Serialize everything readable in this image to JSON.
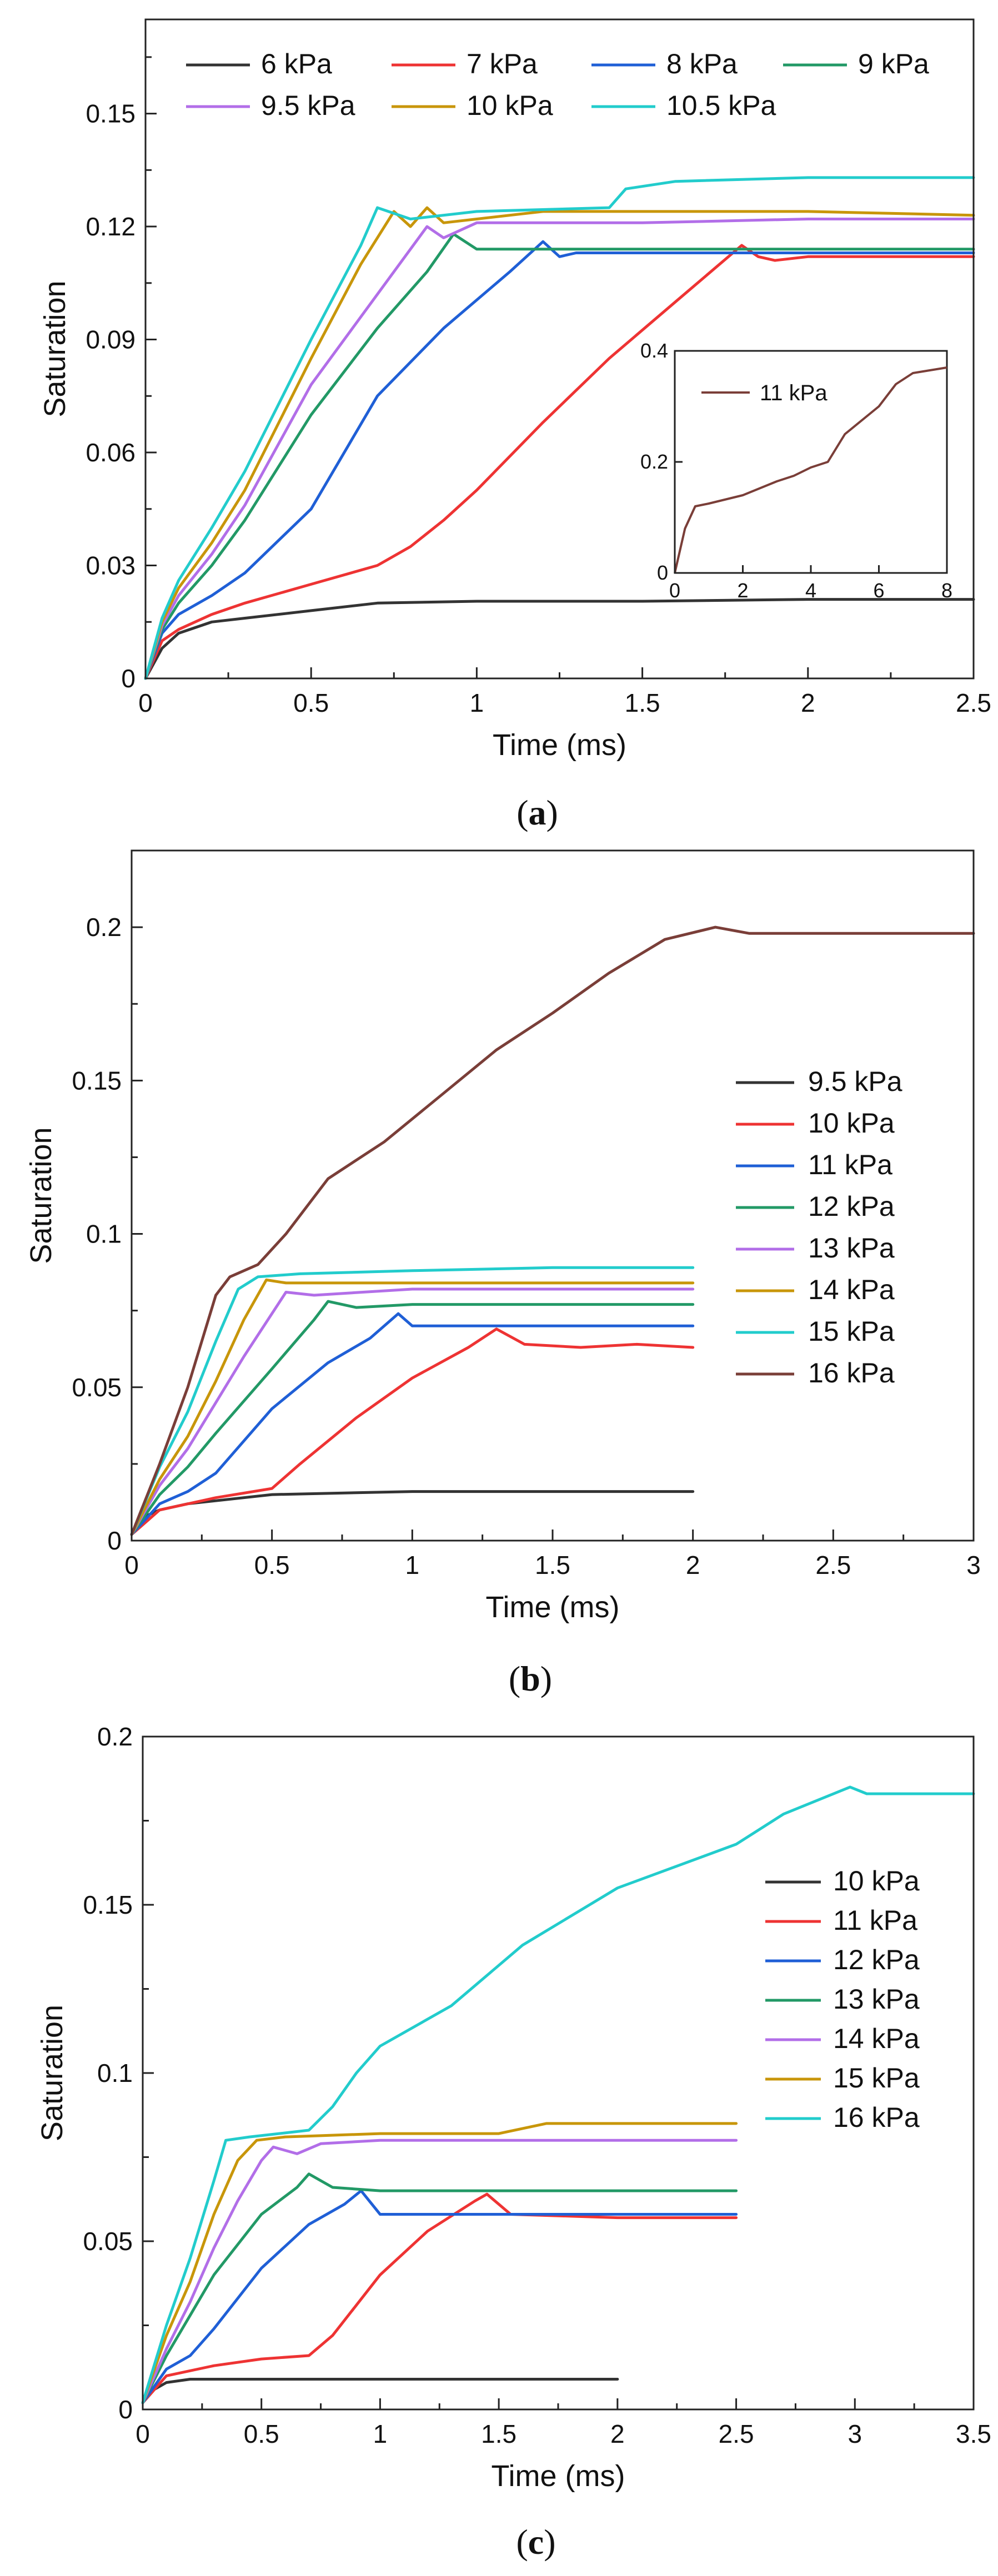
{
  "figure_type": "multi-panel line chart",
  "colors": {
    "black": "#333333",
    "red": "#ee3333",
    "blue": "#1f5fd6",
    "green": "#229966",
    "purple": "#b26ee8",
    "gold": "#c8960a",
    "cyan": "#22cccc",
    "brown": "#7a3e38"
  },
  "chart_data": [
    {
      "type": "line",
      "panel_label": "a",
      "xlabel": "Time (ms)",
      "ylabel": "Saturation",
      "xlim": [
        0,
        2.5
      ],
      "ylim": [
        0,
        0.175
      ],
      "xticks": [
        "0",
        "0.5",
        "1",
        "1.5",
        "2",
        "2.5"
      ],
      "yticks": [
        "0",
        "0.03",
        "0.06",
        "0.09",
        "0.12",
        "0.15"
      ],
      "xtick_values": [
        0,
        0.5,
        1,
        1.5,
        2,
        2.5
      ],
      "ytick_values": [
        0,
        0.03,
        0.06,
        0.09,
        0.12,
        0.15
      ],
      "legend_position": "top",
      "series": [
        {
          "name": "6 kPa",
          "color": "black",
          "x": [
            0,
            0.05,
            0.1,
            0.2,
            0.3,
            0.5,
            0.7,
            1.0,
            1.5,
            2.0,
            2.5
          ],
          "y": [
            0,
            0.008,
            0.012,
            0.015,
            0.016,
            0.018,
            0.02,
            0.0205,
            0.0205,
            0.021,
            0.021
          ]
        },
        {
          "name": "7 kPa",
          "color": "red",
          "x": [
            0,
            0.05,
            0.1,
            0.2,
            0.3,
            0.5,
            0.7,
            0.8,
            0.9,
            1.0,
            1.2,
            1.4,
            1.6,
            1.8,
            1.85,
            1.9,
            2.0,
            2.5
          ],
          "y": [
            0,
            0.01,
            0.013,
            0.017,
            0.02,
            0.025,
            0.03,
            0.035,
            0.042,
            0.05,
            0.068,
            0.085,
            0.1,
            0.115,
            0.112,
            0.111,
            0.112,
            0.112
          ]
        },
        {
          "name": "8 kPa",
          "color": "blue",
          "x": [
            0,
            0.05,
            0.1,
            0.2,
            0.3,
            0.5,
            0.7,
            0.9,
            1.1,
            1.2,
            1.25,
            1.3,
            1.5,
            2.0,
            2.5
          ],
          "y": [
            0,
            0.012,
            0.017,
            0.022,
            0.028,
            0.045,
            0.075,
            0.093,
            0.108,
            0.116,
            0.112,
            0.113,
            0.113,
            0.113,
            0.113
          ]
        },
        {
          "name": "9 kPa",
          "color": "green",
          "x": [
            0,
            0.05,
            0.1,
            0.2,
            0.3,
            0.5,
            0.7,
            0.85,
            0.93,
            1.0,
            1.5,
            2.0,
            2.5
          ],
          "y": [
            0,
            0.013,
            0.02,
            0.03,
            0.042,
            0.07,
            0.093,
            0.108,
            0.118,
            0.114,
            0.114,
            0.114,
            0.114
          ]
        },
        {
          "name": "9.5 kPa",
          "color": "purple",
          "x": [
            0,
            0.05,
            0.1,
            0.2,
            0.3,
            0.5,
            0.7,
            0.85,
            0.9,
            1.0,
            1.5,
            2.0,
            2.5
          ],
          "y": [
            0,
            0.014,
            0.022,
            0.033,
            0.046,
            0.078,
            0.102,
            0.12,
            0.117,
            0.121,
            0.121,
            0.122,
            0.122
          ]
        },
        {
          "name": "10 kPa",
          "color": "gold",
          "x": [
            0,
            0.05,
            0.1,
            0.2,
            0.3,
            0.5,
            0.65,
            0.75,
            0.8,
            0.85,
            0.9,
            1.2,
            1.5,
            2.0,
            2.5
          ],
          "y": [
            0,
            0.015,
            0.024,
            0.036,
            0.05,
            0.085,
            0.11,
            0.124,
            0.12,
            0.125,
            0.121,
            0.124,
            0.124,
            0.124,
            0.123
          ]
        },
        {
          "name": "10.5 kPa",
          "color": "cyan",
          "x": [
            0,
            0.05,
            0.1,
            0.2,
            0.3,
            0.5,
            0.65,
            0.7,
            0.8,
            1.0,
            1.4,
            1.45,
            1.6,
            2.0,
            2.5
          ],
          "y": [
            0,
            0.016,
            0.026,
            0.04,
            0.055,
            0.09,
            0.115,
            0.125,
            0.122,
            0.124,
            0.125,
            0.13,
            0.132,
            0.133,
            0.133
          ]
        }
      ],
      "inset": {
        "xlim": [
          0,
          8
        ],
        "ylim": [
          0,
          0.4
        ],
        "xticks": [
          "0",
          "2",
          "4",
          "6",
          "8"
        ],
        "yticks": [
          "0",
          "0.2",
          "0.4"
        ],
        "xtick_values": [
          0,
          2,
          4,
          6,
          8
        ],
        "ytick_values": [
          0,
          0.2,
          0.4
        ],
        "series": [
          {
            "name": "11 kPa",
            "color": "brown",
            "x": [
              0,
              0.3,
              0.6,
              1.0,
              2.0,
              3.0,
              3.5,
              4.0,
              4.5,
              5.0,
              6.0,
              6.5,
              7.0,
              8.0
            ],
            "y": [
              0,
              0.08,
              0.12,
              0.125,
              0.14,
              0.165,
              0.175,
              0.19,
              0.2,
              0.25,
              0.3,
              0.34,
              0.36,
              0.37
            ]
          }
        ]
      }
    },
    {
      "type": "line",
      "panel_label": "b",
      "xlabel": "Time (ms)",
      "ylabel": "Saturation",
      "xlim": [
        0,
        3
      ],
      "ylim": [
        0,
        0.225
      ],
      "xticks": [
        "0",
        "0.5",
        "1",
        "1.5",
        "2",
        "2.5",
        "3"
      ],
      "yticks": [
        "0",
        "0.05",
        "0.1",
        "0.15",
        "0.2"
      ],
      "xtick_values": [
        0,
        0.5,
        1,
        1.5,
        2,
        2.5,
        3
      ],
      "ytick_values": [
        0,
        0.05,
        0.1,
        0.15,
        0.2
      ],
      "legend_position": "right",
      "series": [
        {
          "name": "9.5 kPa",
          "color": "black",
          "x": [
            0,
            0.05,
            0.1,
            0.2,
            0.3,
            0.5,
            1.0,
            1.5,
            2.0
          ],
          "y": [
            0.002,
            0.008,
            0.01,
            0.012,
            0.013,
            0.015,
            0.016,
            0.016,
            0.016
          ]
        },
        {
          "name": "10  kPa",
          "color": "red",
          "x": [
            0,
            0.1,
            0.3,
            0.5,
            0.6,
            0.8,
            1.0,
            1.2,
            1.3,
            1.4,
            1.6,
            1.8,
            2.0
          ],
          "y": [
            0.002,
            0.01,
            0.014,
            0.017,
            0.025,
            0.04,
            0.053,
            0.063,
            0.069,
            0.064,
            0.063,
            0.064,
            0.063
          ]
        },
        {
          "name": "11  kPa",
          "color": "blue",
          "x": [
            0,
            0.1,
            0.2,
            0.3,
            0.5,
            0.7,
            0.85,
            0.95,
            1.0,
            1.1,
            1.5,
            2.0
          ],
          "y": [
            0.002,
            0.012,
            0.016,
            0.022,
            0.043,
            0.058,
            0.066,
            0.074,
            0.07,
            0.07,
            0.07,
            0.07
          ]
        },
        {
          "name": "12  kPa",
          "color": "green",
          "x": [
            0,
            0.1,
            0.2,
            0.3,
            0.5,
            0.65,
            0.7,
            0.8,
            1.0,
            1.5,
            2.0
          ],
          "y": [
            0.002,
            0.015,
            0.024,
            0.035,
            0.056,
            0.072,
            0.078,
            0.076,
            0.077,
            0.077,
            0.077
          ]
        },
        {
          "name": "13  kPa",
          "color": "purple",
          "x": [
            0,
            0.1,
            0.2,
            0.3,
            0.4,
            0.55,
            0.65,
            1.0,
            1.5,
            2.0
          ],
          "y": [
            0.002,
            0.018,
            0.03,
            0.045,
            0.06,
            0.081,
            0.08,
            0.082,
            0.082,
            0.082
          ]
        },
        {
          "name": "14  kPa",
          "color": "gold",
          "x": [
            0,
            0.1,
            0.2,
            0.3,
            0.4,
            0.48,
            0.55,
            1.0,
            1.5,
            2.0
          ],
          "y": [
            0.002,
            0.02,
            0.034,
            0.052,
            0.072,
            0.085,
            0.084,
            0.084,
            0.084,
            0.084
          ]
        },
        {
          "name": "15  kPa",
          "color": "cyan",
          "x": [
            0,
            0.1,
            0.2,
            0.3,
            0.38,
            0.45,
            0.6,
            1.0,
            1.5,
            2.0
          ],
          "y": [
            0.002,
            0.024,
            0.042,
            0.065,
            0.082,
            0.086,
            0.087,
            0.088,
            0.089,
            0.089
          ]
        },
        {
          "name": "16  kPa",
          "color": "brown",
          "x": [
            0,
            0.1,
            0.2,
            0.3,
            0.35,
            0.45,
            0.55,
            0.7,
            0.9,
            1.1,
            1.3,
            1.5,
            1.7,
            1.9,
            2.08,
            2.2,
            2.5,
            3.0
          ],
          "y": [
            0.002,
            0.025,
            0.05,
            0.08,
            0.086,
            0.09,
            0.1,
            0.118,
            0.13,
            0.145,
            0.16,
            0.172,
            0.185,
            0.196,
            0.2,
            0.198,
            0.198,
            0.198
          ]
        }
      ]
    },
    {
      "type": "line",
      "panel_label": "c",
      "xlabel": "Time (ms)",
      "ylabel": "Saturation",
      "xlim": [
        0,
        3.5
      ],
      "ylim": [
        0,
        0.2
      ],
      "xticks": [
        "0",
        "0.5",
        "1",
        "1.5",
        "2",
        "2.5",
        "3",
        "3.5"
      ],
      "yticks": [
        "0",
        "0.05",
        "0.1",
        "0.15",
        "0.2"
      ],
      "xtick_values": [
        0,
        0.5,
        1,
        1.5,
        2,
        2.5,
        3,
        3.5
      ],
      "ytick_values": [
        0,
        0.05,
        0.1,
        0.15,
        0.2
      ],
      "legend_position": "right",
      "series": [
        {
          "name": "10 kPa",
          "color": "black",
          "x": [
            0,
            0.05,
            0.1,
            0.2,
            0.5,
            1.0,
            1.5,
            2.0
          ],
          "y": [
            0.002,
            0.006,
            0.008,
            0.009,
            0.009,
            0.009,
            0.009,
            0.009
          ]
        },
        {
          "name": "11 kPa",
          "color": "red",
          "x": [
            0,
            0.1,
            0.3,
            0.5,
            0.7,
            0.8,
            1.0,
            1.2,
            1.4,
            1.45,
            1.55,
            2.0,
            2.5
          ],
          "y": [
            0.002,
            0.01,
            0.013,
            0.015,
            0.016,
            0.022,
            0.04,
            0.053,
            0.062,
            0.064,
            0.058,
            0.057,
            0.057
          ]
        },
        {
          "name": "12 kPa",
          "color": "blue",
          "x": [
            0,
            0.1,
            0.2,
            0.3,
            0.5,
            0.7,
            0.85,
            0.92,
            1.0,
            1.5,
            2.0,
            2.5
          ],
          "y": [
            0.002,
            0.012,
            0.016,
            0.024,
            0.042,
            0.055,
            0.061,
            0.065,
            0.058,
            0.058,
            0.058,
            0.058
          ]
        },
        {
          "name": "13 kPa",
          "color": "green",
          "x": [
            0,
            0.1,
            0.2,
            0.3,
            0.5,
            0.65,
            0.7,
            0.8,
            1.0,
            1.5,
            2.0,
            2.5
          ],
          "y": [
            0.002,
            0.016,
            0.028,
            0.04,
            0.058,
            0.066,
            0.07,
            0.066,
            0.065,
            0.065,
            0.065,
            0.065
          ]
        },
        {
          "name": "14 kPa",
          "color": "purple",
          "x": [
            0,
            0.1,
            0.2,
            0.3,
            0.4,
            0.5,
            0.55,
            0.65,
            0.75,
            1.0,
            1.5,
            2.0,
            2.5
          ],
          "y": [
            0.002,
            0.018,
            0.032,
            0.048,
            0.062,
            0.074,
            0.078,
            0.076,
            0.079,
            0.08,
            0.08,
            0.08,
            0.08
          ]
        },
        {
          "name": "15 kPa",
          "color": "gold",
          "x": [
            0,
            0.1,
            0.2,
            0.3,
            0.4,
            0.48,
            0.6,
            1.0,
            1.5,
            1.7,
            2.0,
            2.5
          ],
          "y": [
            0.002,
            0.022,
            0.038,
            0.058,
            0.074,
            0.08,
            0.081,
            0.082,
            0.082,
            0.085,
            0.085,
            0.085
          ]
        },
        {
          "name": "16 kPa",
          "color": "cyan",
          "x": [
            0,
            0.1,
            0.2,
            0.3,
            0.35,
            0.45,
            0.7,
            0.8,
            0.9,
            1.0,
            1.3,
            1.6,
            2.0,
            2.5,
            2.7,
            2.98,
            3.05,
            3.5
          ],
          "y": [
            0.002,
            0.025,
            0.045,
            0.068,
            0.08,
            0.081,
            0.083,
            0.09,
            0.1,
            0.108,
            0.12,
            0.138,
            0.155,
            0.168,
            0.177,
            0.185,
            0.183,
            0.183
          ]
        }
      ]
    }
  ]
}
